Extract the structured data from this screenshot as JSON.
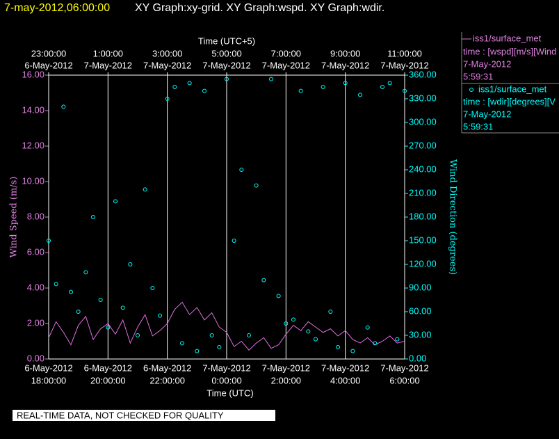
{
  "chart_data": {
    "type": "line_scatter",
    "title": "7-may-2012,06:00:00",
    "subtitle": "XY Graph:xy-grid.  XY Graph:wspd.  XY Graph:wdir.",
    "note": "REAL-TIME DATA, NOT CHECKED FOR QUALITY",
    "xlabel": "Time (UTC)",
    "x2label": "Time (UTC+5)",
    "ylabel": "Wind Speed (m/s)",
    "y2label": "Wind Direction (degrees)",
    "xlim": [
      "2012-05-06 18:00:00",
      "2012-05-07 06:00:00"
    ],
    "xticks": [
      {
        "value": "2012-05-06 18:00:00",
        "label": [
          "6-May-2012",
          "18:00:00"
        ]
      },
      {
        "value": "2012-05-06 20:00:00",
        "label": [
          "6-May-2012",
          "20:00:00"
        ]
      },
      {
        "value": "2012-05-06 22:00:00",
        "label": [
          "6-May-2012",
          "22:00:00"
        ]
      },
      {
        "value": "2012-05-07 00:00:00",
        "label": [
          "7-May-2012",
          "0:00:00"
        ]
      },
      {
        "value": "2012-05-07 02:00:00",
        "label": [
          "7-May-2012",
          "2:00:00"
        ]
      },
      {
        "value": "2012-05-07 04:00:00",
        "label": [
          "7-May-2012",
          "4:00:00"
        ]
      },
      {
        "value": "2012-05-07 06:00:00",
        "label": [
          "7-May-2012",
          "6:00:00"
        ]
      }
    ],
    "x2ticks": [
      {
        "value": "2012-05-06 18:00:00",
        "label": [
          "23:00:00",
          "6-May-2012"
        ]
      },
      {
        "value": "2012-05-06 20:00:00",
        "label": [
          "1:00:00",
          "7-May-2012"
        ]
      },
      {
        "value": "2012-05-06 22:00:00",
        "label": [
          "3:00:00",
          "7-May-2012"
        ]
      },
      {
        "value": "2012-05-07 00:00:00",
        "label": [
          "5:00:00",
          "7-May-2012"
        ]
      },
      {
        "value": "2012-05-07 02:00:00",
        "label": [
          "7:00:00",
          "7-May-2012"
        ]
      },
      {
        "value": "2012-05-07 04:00:00",
        "label": [
          "9:00:00",
          "7-May-2012"
        ]
      },
      {
        "value": "2012-05-07 06:00:00",
        "label": [
          "11:00:00",
          "7-May-2012"
        ]
      }
    ],
    "ylim": [
      0,
      16
    ],
    "yticks": [
      {
        "value": 0,
        "label": "0.00"
      },
      {
        "value": 2,
        "label": "2.00"
      },
      {
        "value": 4,
        "label": "4.00"
      },
      {
        "value": 6,
        "label": "6.00"
      },
      {
        "value": 8,
        "label": "8.00"
      },
      {
        "value": 10,
        "label": "10.00"
      },
      {
        "value": 12,
        "label": "12.00"
      },
      {
        "value": 14,
        "label": "14.00"
      },
      {
        "value": 16,
        "label": "16.00"
      }
    ],
    "y2lim": [
      0,
      360
    ],
    "y2ticks": [
      {
        "value": 0,
        "label": "0.00"
      },
      {
        "value": 30,
        "label": "30.00"
      },
      {
        "value": 60,
        "label": "60.00"
      },
      {
        "value": 90,
        "label": "90.00"
      },
      {
        "value": 120,
        "label": "120.00"
      },
      {
        "value": 150,
        "label": "150.00"
      },
      {
        "value": 180,
        "label": "180.00"
      },
      {
        "value": 210,
        "label": "210.00"
      },
      {
        "value": 240,
        "label": "240.00"
      },
      {
        "value": 270,
        "label": "270.00"
      },
      {
        "value": 300,
        "label": "300.00"
      },
      {
        "value": 330,
        "label": "330.00"
      },
      {
        "value": 360,
        "label": "360.00"
      }
    ],
    "grid": true,
    "x": [
      "2012-05-06 18:00:00",
      "2012-05-06 18:15:00",
      "2012-05-06 18:30:00",
      "2012-05-06 18:45:00",
      "2012-05-06 19:00:00",
      "2012-05-06 19:15:00",
      "2012-05-06 19:30:00",
      "2012-05-06 19:45:00",
      "2012-05-06 20:00:00",
      "2012-05-06 20:15:00",
      "2012-05-06 20:30:00",
      "2012-05-06 20:45:00",
      "2012-05-06 21:00:00",
      "2012-05-06 21:15:00",
      "2012-05-06 21:30:00",
      "2012-05-06 21:45:00",
      "2012-05-06 22:00:00",
      "2012-05-06 22:15:00",
      "2012-05-06 22:30:00",
      "2012-05-06 22:45:00",
      "2012-05-06 23:00:00",
      "2012-05-06 23:15:00",
      "2012-05-06 23:30:00",
      "2012-05-06 23:45:00",
      "2012-05-07 00:00:00",
      "2012-05-07 00:15:00",
      "2012-05-07 00:30:00",
      "2012-05-07 00:45:00",
      "2012-05-07 01:00:00",
      "2012-05-07 01:15:00",
      "2012-05-07 01:30:00",
      "2012-05-07 01:45:00",
      "2012-05-07 02:00:00",
      "2012-05-07 02:15:00",
      "2012-05-07 02:30:00",
      "2012-05-07 02:45:00",
      "2012-05-07 03:00:00",
      "2012-05-07 03:15:00",
      "2012-05-07 03:30:00",
      "2012-05-07 03:45:00",
      "2012-05-07 04:00:00",
      "2012-05-07 04:15:00",
      "2012-05-07 04:30:00",
      "2012-05-07 04:45:00",
      "2012-05-07 05:00:00",
      "2012-05-07 05:15:00",
      "2012-05-07 05:30:00",
      "2012-05-07 05:45:00",
      "2012-05-07 06:00:00"
    ],
    "series": [
      {
        "name": "iss1/surface_met",
        "color": "#e070e0",
        "style": "line",
        "legend_text": [
          "time : [wspd][m/s][Wind",
          "7-May-2012",
          "5:59:31"
        ],
        "values": [
          1.2,
          2.1,
          1.5,
          0.8,
          1.9,
          2.4,
          1.1,
          1.7,
          2.0,
          1.4,
          2.2,
          0.9,
          1.8,
          2.5,
          1.3,
          1.6,
          2.0,
          2.8,
          3.2,
          2.5,
          2.9,
          2.2,
          2.6,
          1.8,
          1.5,
          0.7,
          1.0,
          0.5,
          0.9,
          1.2,
          0.6,
          0.8,
          1.4,
          1.9,
          1.6,
          2.1,
          1.8,
          1.5,
          1.7,
          1.3,
          1.6,
          1.1,
          0.9,
          1.2,
          0.8,
          1.0,
          1.3,
          0.9,
          1.0
        ]
      },
      {
        "name": "iss1/surface_met",
        "color": "#00ffff",
        "style": "scatter",
        "axis": "y2",
        "legend_text": [
          "time : [wdir][degrees][V",
          "7-May-2012",
          "5:59:31"
        ],
        "values": [
          150,
          95,
          320,
          85,
          60,
          110,
          180,
          75,
          40,
          200,
          65,
          120,
          30,
          215,
          90,
          55,
          330,
          345,
          20,
          350,
          10,
          340,
          30,
          15,
          355,
          150,
          240,
          30,
          220,
          100,
          355,
          80,
          45,
          50,
          340,
          35,
          25,
          345,
          60,
          15,
          350,
          10,
          335,
          40,
          20,
          345,
          350,
          25,
          340
        ]
      }
    ]
  }
}
